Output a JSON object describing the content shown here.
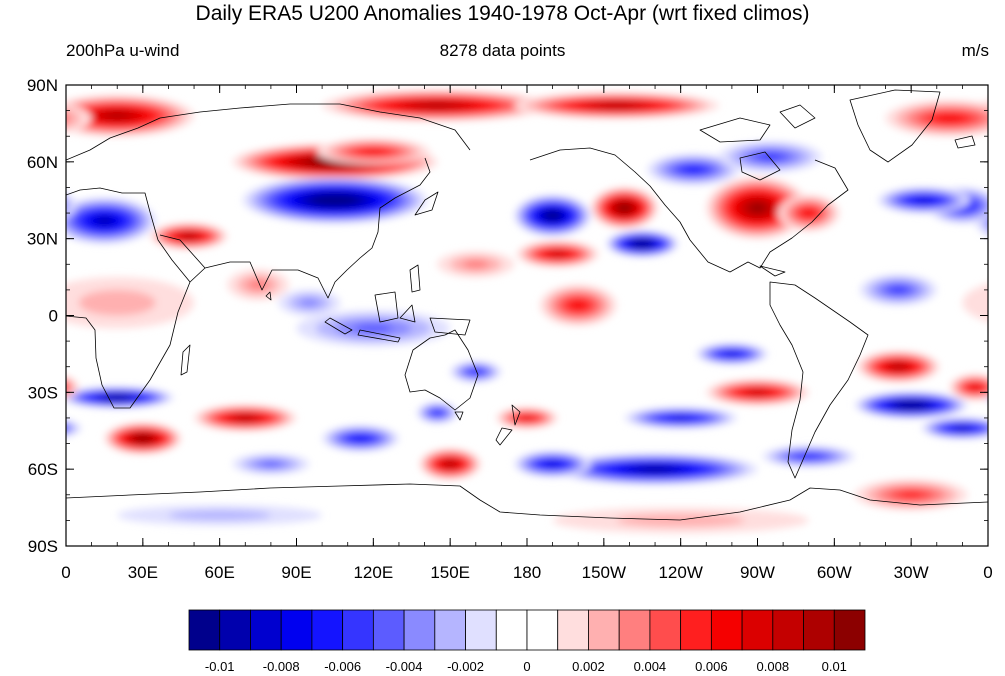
{
  "title": "Daily ERA5 U200 Anomalies 1940-1978 Oct-Apr (wrt fixed climos)",
  "left_label": "200hPa u-wind",
  "center_label": "8278 data points",
  "right_label": "m/s",
  "map": {
    "projection": "cylindrical-equidistant",
    "lon_range": [
      0,
      360
    ],
    "lat_range": [
      -90,
      90
    ],
    "lat_ticks": [
      {
        "lat": 90,
        "label": "90N"
      },
      {
        "lat": 60,
        "label": "60N"
      },
      {
        "lat": 30,
        "label": "30N"
      },
      {
        "lat": 0,
        "label": "0"
      },
      {
        "lat": -30,
        "label": "30S"
      },
      {
        "lat": -60,
        "label": "60S"
      },
      {
        "lat": -90,
        "label": "90S"
      }
    ],
    "lon_ticks": [
      {
        "lon": 0,
        "label": "0"
      },
      {
        "lon": 30,
        "label": "30E"
      },
      {
        "lon": 60,
        "label": "60E"
      },
      {
        "lon": 90,
        "label": "90E"
      },
      {
        "lon": 120,
        "label": "120E"
      },
      {
        "lon": 150,
        "label": "150E"
      },
      {
        "lon": 180,
        "label": "180"
      },
      {
        "lon": 210,
        "label": "150W"
      },
      {
        "lon": 240,
        "label": "120W"
      },
      {
        "lon": 270,
        "label": "90W"
      },
      {
        "lon": 300,
        "label": "60W"
      },
      {
        "lon": 330,
        "label": "30W"
      },
      {
        "lon": 360,
        "label": "0"
      }
    ],
    "features": [
      {
        "lon": 145,
        "lat": 82,
        "a": 45,
        "b": 6,
        "v": 0.0085
      },
      {
        "lon": 215,
        "lat": 82,
        "a": 40,
        "b": 5,
        "v": 0.0085
      },
      {
        "lon": 20,
        "lat": 78,
        "a": 30,
        "b": 8,
        "v": 0.009
      },
      {
        "lon": 345,
        "lat": 77,
        "a": 25,
        "b": 7,
        "v": 0.006
      },
      {
        "lon": 105,
        "lat": 60,
        "a": 40,
        "b": 7,
        "v": 0.012
      },
      {
        "lon": 120,
        "lat": 64,
        "a": 22,
        "b": 5,
        "v": 0.006
      },
      {
        "lon": 105,
        "lat": 45,
        "a": 36,
        "b": 9,
        "v": -0.012
      },
      {
        "lon": 15,
        "lat": 37,
        "a": 20,
        "b": 9,
        "v": -0.009
      },
      {
        "lon": 350,
        "lat": 43,
        "a": 14,
        "b": 7,
        "v": -0.007
      },
      {
        "lon": 335,
        "lat": 45,
        "a": 18,
        "b": 5,
        "v": -0.008
      },
      {
        "lon": 48,
        "lat": 31,
        "a": 15,
        "b": 5,
        "v": 0.009
      },
      {
        "lon": 190,
        "lat": 39,
        "a": 15,
        "b": 8,
        "v": -0.011
      },
      {
        "lon": 218,
        "lat": 42,
        "a": 13,
        "b": 8,
        "v": 0.011
      },
      {
        "lon": 225,
        "lat": 28,
        "a": 14,
        "b": 5,
        "v": -0.012
      },
      {
        "lon": 192,
        "lat": 24,
        "a": 16,
        "b": 5,
        "v": 0.008
      },
      {
        "lon": 270,
        "lat": 42,
        "a": 20,
        "b": 12,
        "v": 0.01
      },
      {
        "lon": 290,
        "lat": 40,
        "a": 12,
        "b": 7,
        "v": 0.006
      },
      {
        "lon": 245,
        "lat": 57,
        "a": 18,
        "b": 6,
        "v": -0.006
      },
      {
        "lon": 275,
        "lat": 62,
        "a": 20,
        "b": 6,
        "v": -0.005
      },
      {
        "lon": 200,
        "lat": 4,
        "a": 15,
        "b": 8,
        "v": 0.006
      },
      {
        "lon": 120,
        "lat": -5,
        "a": 30,
        "b": 7,
        "v": -0.004
      },
      {
        "lon": 95,
        "lat": 5,
        "a": 12,
        "b": 5,
        "v": -0.003
      },
      {
        "lon": 325,
        "lat": 10,
        "a": 15,
        "b": 6,
        "v": -0.005
      },
      {
        "lon": 20,
        "lat": -32,
        "a": 22,
        "b": 4,
        "v": -0.011
      },
      {
        "lon": 330,
        "lat": -35,
        "a": 22,
        "b": 5,
        "v": -0.012
      },
      {
        "lon": 350,
        "lat": -44,
        "a": 16,
        "b": 4,
        "v": -0.009
      },
      {
        "lon": 325,
        "lat": -20,
        "a": 16,
        "b": 6,
        "v": 0.009
      },
      {
        "lon": 355,
        "lat": -28,
        "a": 10,
        "b": 5,
        "v": 0.007
      },
      {
        "lon": 270,
        "lat": -30,
        "a": 20,
        "b": 5,
        "v": 0.008
      },
      {
        "lon": 240,
        "lat": -40,
        "a": 22,
        "b": 4,
        "v": -0.008
      },
      {
        "lon": 260,
        "lat": -15,
        "a": 14,
        "b": 4,
        "v": -0.008
      },
      {
        "lon": 290,
        "lat": -55,
        "a": 18,
        "b": 4,
        "v": -0.006
      },
      {
        "lon": 30,
        "lat": -48,
        "a": 15,
        "b": 6,
        "v": 0.011
      },
      {
        "lon": 70,
        "lat": -40,
        "a": 20,
        "b": 5,
        "v": 0.009
      },
      {
        "lon": 115,
        "lat": -48,
        "a": 15,
        "b": 5,
        "v": -0.007
      },
      {
        "lon": 145,
        "lat": -38,
        "a": 8,
        "b": 4,
        "v": -0.006
      },
      {
        "lon": 150,
        "lat": -58,
        "a": 12,
        "b": 6,
        "v": 0.009
      },
      {
        "lon": 180,
        "lat": -40,
        "a": 12,
        "b": 4,
        "v": 0.007
      },
      {
        "lon": 160,
        "lat": -22,
        "a": 10,
        "b": 4,
        "v": -0.006
      },
      {
        "lon": 230,
        "lat": -60,
        "a": 40,
        "b": 6,
        "v": -0.01
      },
      {
        "lon": 190,
        "lat": -58,
        "a": 15,
        "b": 5,
        "v": -0.008
      },
      {
        "lon": 80,
        "lat": -58,
        "a": 15,
        "b": 4,
        "v": -0.004
      },
      {
        "lon": 330,
        "lat": -70,
        "a": 22,
        "b": 6,
        "v": 0.005
      },
      {
        "lon": 240,
        "lat": -80,
        "a": 50,
        "b": 5,
        "v": 0.002
      },
      {
        "lon": 60,
        "lat": -78,
        "a": 40,
        "b": 4,
        "v": -0.002
      },
      {
        "lon": 20,
        "lat": 5,
        "a": 30,
        "b": 10,
        "v": 0.002
      },
      {
        "lon": 75,
        "lat": 12,
        "a": 12,
        "b": 6,
        "v": 0.003
      },
      {
        "lon": 160,
        "lat": 20,
        "a": 15,
        "b": 5,
        "v": 0.003
      }
    ]
  },
  "colorbar": {
    "colors": [
      "#00008c",
      "#0000ad",
      "#0000cf",
      "#0000f0",
      "#1414ff",
      "#3535ff",
      "#5c5cff",
      "#8a8aff",
      "#b5b5ff",
      "#e0e0ff",
      "#ffffff",
      "#ffffff",
      "#ffdede",
      "#ffb0b0",
      "#ff7f7f",
      "#ff4d4d",
      "#ff1f1f",
      "#f50000",
      "#db0000",
      "#c40000",
      "#ad0000",
      "#8c0000"
    ],
    "labels": [
      "-0.01",
      "-0.008",
      "-0.006",
      "-0.004",
      "-0.002",
      "0",
      "0.002",
      "0.004",
      "0.006",
      "0.008",
      "0.01"
    ],
    "label_values": [
      -0.01,
      -0.008,
      -0.006,
      -0.004,
      -0.002,
      0,
      0.002,
      0.004,
      0.006,
      0.008,
      0.01
    ],
    "range": [
      -0.011,
      0.011
    ]
  }
}
